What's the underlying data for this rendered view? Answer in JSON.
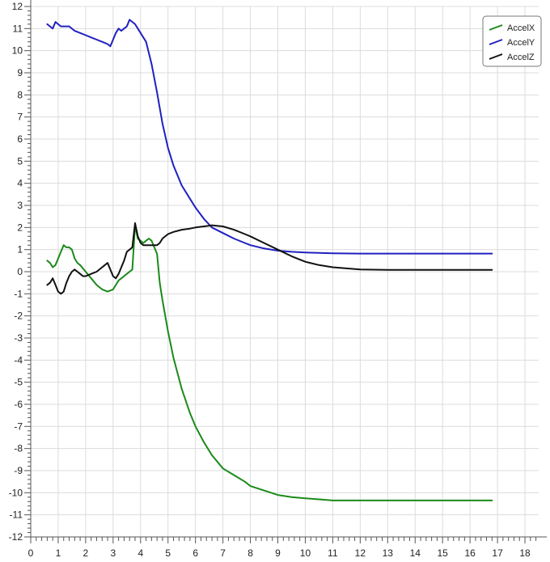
{
  "chart_data": {
    "type": "line",
    "title": "",
    "xlabel": "",
    "ylabel": "",
    "xlim": [
      0,
      18.5
    ],
    "ylim": [
      -12,
      12
    ],
    "x_ticks": [
      "0",
      "1",
      "2",
      "3",
      "4",
      "5",
      "6",
      "7",
      "8",
      "9",
      "10",
      "11",
      "12",
      "13",
      "14",
      "15",
      "16",
      "17",
      "18"
    ],
    "y_ticks": [
      "12",
      "11",
      "10",
      "9",
      "8",
      "7",
      "6",
      "5",
      "4",
      "3",
      "2",
      "1",
      "0",
      "-1",
      "-2",
      "-3",
      "-4",
      "-5",
      "-6",
      "-7",
      "-8",
      "-9",
      "-10",
      "-11",
      "-12"
    ],
    "grid": true,
    "legend_position": "top-right",
    "series": [
      {
        "name": "AccelX",
        "color": "#1a8a1a",
        "x": [
          0.6,
          0.7,
          0.8,
          0.9,
          1.0,
          1.1,
          1.2,
          1.3,
          1.4,
          1.5,
          1.6,
          1.7,
          1.8,
          2.0,
          2.2,
          2.4,
          2.6,
          2.8,
          3.0,
          3.1,
          3.2,
          3.3,
          3.4,
          3.5,
          3.6,
          3.7,
          3.8,
          3.85,
          3.9,
          4.0,
          4.1,
          4.2,
          4.3,
          4.4,
          4.5,
          4.6,
          4.7,
          4.8,
          5.0,
          5.2,
          5.5,
          5.8,
          6.0,
          6.3,
          6.6,
          7.0,
          7.4,
          7.8,
          8.0,
          8.5,
          9.0,
          9.5,
          10.0,
          10.5,
          11.0,
          12.0,
          13.0,
          14.0,
          15.0,
          16.0,
          16.8
        ],
        "y": [
          0.5,
          0.4,
          0.2,
          0.3,
          0.6,
          0.9,
          1.2,
          1.1,
          1.1,
          1.0,
          0.6,
          0.4,
          0.3,
          0.0,
          -0.3,
          -0.6,
          -0.8,
          -0.9,
          -0.8,
          -0.6,
          -0.4,
          -0.3,
          -0.2,
          -0.1,
          0.0,
          0.1,
          2.1,
          1.8,
          1.5,
          1.4,
          1.3,
          1.4,
          1.5,
          1.4,
          1.1,
          0.8,
          -0.5,
          -1.3,
          -2.7,
          -3.9,
          -5.3,
          -6.4,
          -7.0,
          -7.7,
          -8.3,
          -8.9,
          -9.2,
          -9.5,
          -9.7,
          -9.9,
          -10.1,
          -10.2,
          -10.25,
          -10.3,
          -10.35,
          -10.35,
          -10.35,
          -10.35,
          -10.35,
          -10.35,
          -10.35
        ]
      },
      {
        "name": "AccelY",
        "color": "#2020c0",
        "x": [
          0.6,
          0.7,
          0.8,
          0.9,
          1.0,
          1.1,
          1.2,
          1.4,
          1.6,
          1.8,
          2.0,
          2.2,
          2.4,
          2.6,
          2.8,
          2.9,
          3.0,
          3.1,
          3.2,
          3.3,
          3.4,
          3.5,
          3.6,
          3.7,
          3.8,
          3.9,
          4.0,
          4.2,
          4.4,
          4.6,
          4.8,
          5.0,
          5.2,
          5.5,
          5.8,
          6.0,
          6.3,
          6.6,
          7.0,
          7.4,
          7.8,
          8.0,
          8.5,
          9.0,
          9.5,
          10.0,
          10.5,
          11.0,
          12.0,
          13.0,
          14.0,
          15.0,
          16.0,
          16.8
        ],
        "y": [
          11.2,
          11.1,
          11.0,
          11.3,
          11.2,
          11.1,
          11.1,
          11.1,
          10.9,
          10.8,
          10.7,
          10.6,
          10.5,
          10.4,
          10.3,
          10.2,
          10.5,
          10.8,
          11.0,
          10.9,
          11.0,
          11.1,
          11.4,
          11.3,
          11.2,
          11.0,
          10.8,
          10.4,
          9.4,
          8.1,
          6.7,
          5.6,
          4.8,
          3.9,
          3.3,
          2.9,
          2.4,
          2.0,
          1.75,
          1.5,
          1.3,
          1.2,
          1.05,
          0.95,
          0.9,
          0.87,
          0.85,
          0.83,
          0.82,
          0.82,
          0.82,
          0.82,
          0.82,
          0.82
        ]
      },
      {
        "name": "AccelZ",
        "color": "#111111",
        "x": [
          0.6,
          0.7,
          0.8,
          0.9,
          1.0,
          1.1,
          1.2,
          1.3,
          1.4,
          1.5,
          1.6,
          1.7,
          1.8,
          1.9,
          2.0,
          2.2,
          2.4,
          2.6,
          2.8,
          2.9,
          3.0,
          3.1,
          3.2,
          3.3,
          3.4,
          3.5,
          3.6,
          3.7,
          3.8,
          3.85,
          3.9,
          4.0,
          4.1,
          4.2,
          4.3,
          4.4,
          4.5,
          4.6,
          4.7,
          4.8,
          5.0,
          5.2,
          5.5,
          5.8,
          6.0,
          6.3,
          6.6,
          7.0,
          7.4,
          7.8,
          8.0,
          8.5,
          9.0,
          9.5,
          10.0,
          10.5,
          11.0,
          12.0,
          13.0,
          14.0,
          15.0,
          16.0,
          16.8
        ],
        "y": [
          -0.6,
          -0.5,
          -0.3,
          -0.6,
          -0.9,
          -1.0,
          -0.9,
          -0.5,
          -0.2,
          0.0,
          0.1,
          0.0,
          -0.1,
          -0.2,
          -0.2,
          -0.1,
          0.0,
          0.2,
          0.4,
          0.1,
          -0.2,
          -0.3,
          -0.1,
          0.2,
          0.5,
          0.9,
          1.0,
          1.1,
          2.2,
          1.9,
          1.6,
          1.3,
          1.2,
          1.2,
          1.2,
          1.2,
          1.2,
          1.2,
          1.3,
          1.5,
          1.7,
          1.8,
          1.9,
          1.95,
          2.0,
          2.05,
          2.1,
          2.05,
          1.9,
          1.7,
          1.6,
          1.3,
          1.0,
          0.7,
          0.45,
          0.3,
          0.2,
          0.1,
          0.08,
          0.08,
          0.08,
          0.08,
          0.08
        ]
      }
    ]
  }
}
